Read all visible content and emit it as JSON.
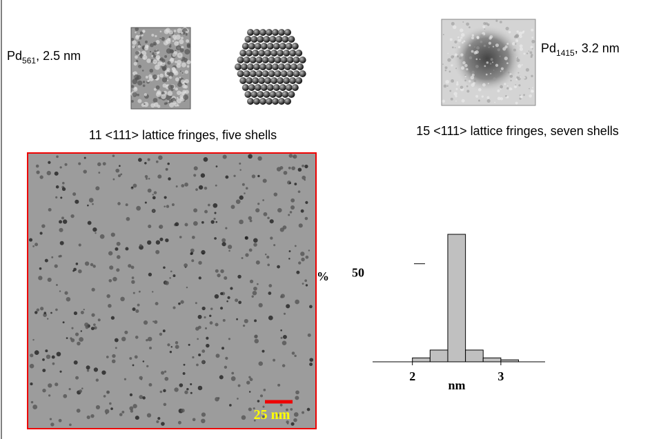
{
  "panels": [
    {
      "label": {
        "base": "Pd",
        "subscript": "561",
        "suffix": ", 2.5 nm"
      },
      "caption": "11 <111> lattice fringes, five shells"
    },
    {
      "label": {
        "base": "Pd",
        "subscript": "1415",
        "suffix": ", 3.2 nm"
      },
      "caption": "15 <111> lattice fringes, seven shells"
    }
  ],
  "micrograph": {
    "scale_bar": "25 nm"
  },
  "chart_data": {
    "type": "histogram",
    "bins": [
      2.0,
      2.2,
      2.4,
      2.6,
      2.8,
      3.0,
      3.2
    ],
    "values": [
      2,
      6,
      65,
      6,
      2,
      1
    ],
    "color": "#c0c0c0",
    "xlim": [
      1.55,
      3.5
    ],
    "ylim": [
      0,
      65
    ],
    "xticks": [
      2,
      3
    ],
    "yticks": [
      50
    ],
    "xlabel": "nm",
    "ylabel": "%"
  }
}
